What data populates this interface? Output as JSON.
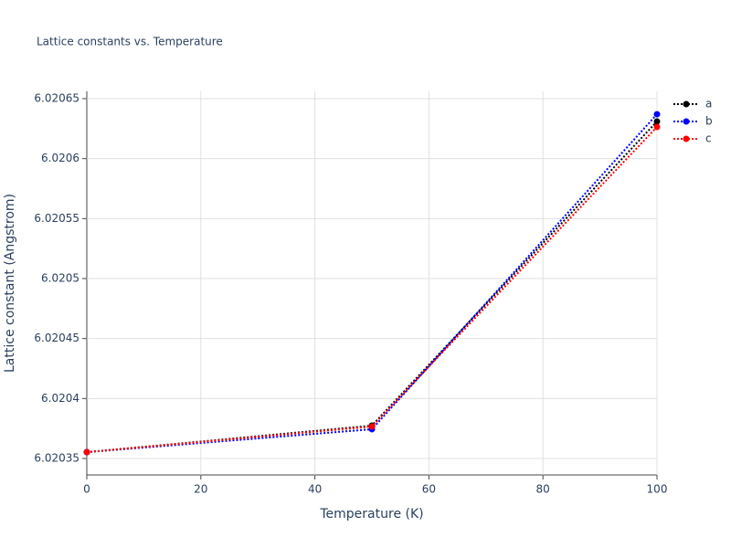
{
  "chart_data": {
    "type": "line",
    "title": "Lattice constants vs. Temperature",
    "x_label": "Temperature (K)",
    "y_label": "Lattice constant (Angstrom)",
    "x": [
      0,
      50,
      100
    ],
    "series": [
      {
        "name": "a",
        "color": "#000000",
        "values": [
          6.0203553,
          6.0203774,
          6.020631
        ]
      },
      {
        "name": "b",
        "color": "#0000ff",
        "values": [
          6.0203553,
          6.0203744,
          6.020637
        ]
      },
      {
        "name": "c",
        "color": "#ff0000",
        "values": [
          6.0203553,
          6.0203767,
          6.0206264
        ]
      }
    ],
    "xlim": [
      0,
      100
    ],
    "xticks": [
      0,
      20,
      40,
      60,
      80,
      100
    ],
    "ylim": [
      6.0203363,
      6.0206561
    ],
    "yticks": [
      6.02035,
      6.0204,
      6.02045,
      6.0205,
      6.02055,
      6.0206,
      6.02065
    ],
    "grid": true,
    "legend": "top-right"
  }
}
